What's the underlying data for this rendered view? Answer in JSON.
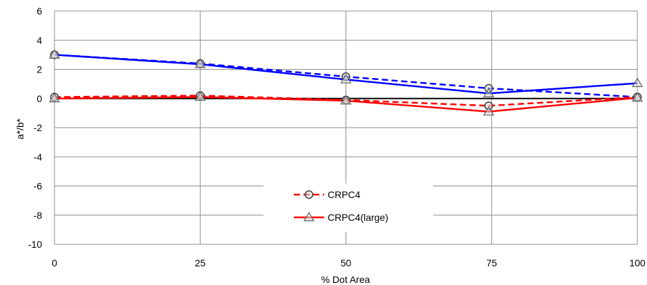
{
  "chart_data": {
    "type": "line",
    "xlabel": "% Dot Area",
    "ylabel": "a*/b*",
    "xlim": [
      0,
      100
    ],
    "ylim": [
      -10,
      6
    ],
    "x_ticks": [
      "0",
      "25",
      "50",
      "75",
      "100"
    ],
    "y_ticks": [
      "6",
      "4",
      "2",
      "0",
      "-2",
      "-4",
      "-6",
      "-8",
      "-10"
    ],
    "grid": true,
    "legend_position": "bottom-center",
    "x": [
      0,
      25,
      50,
      74.5,
      100
    ],
    "series": [
      {
        "name": "",
        "color": "#0000ff",
        "dash": true,
        "marker": "circle",
        "values": [
          3.0,
          2.4,
          1.5,
          0.7,
          0.1
        ]
      },
      {
        "name": "",
        "color": "#0000ff",
        "dash": false,
        "marker": "triangle",
        "values": [
          3.0,
          2.35,
          1.3,
          0.35,
          1.05
        ]
      },
      {
        "name": "CRPC4",
        "color": "#ff0000",
        "dash": true,
        "marker": "circle",
        "values": [
          0.1,
          0.2,
          -0.1,
          -0.5,
          0.1
        ]
      },
      {
        "name": "CRPC4(large)",
        "color": "#ff0000",
        "dash": false,
        "marker": "triangle",
        "values": [
          0.0,
          0.1,
          -0.15,
          -0.9,
          0.05
        ]
      }
    ],
    "legend": [
      {
        "label": "CRPC4",
        "color": "#ff0000",
        "dash": true,
        "marker": "circle"
      },
      {
        "label": "CRPC4(large)",
        "color": "#ff0000",
        "dash": false,
        "marker": "triangle"
      }
    ]
  }
}
